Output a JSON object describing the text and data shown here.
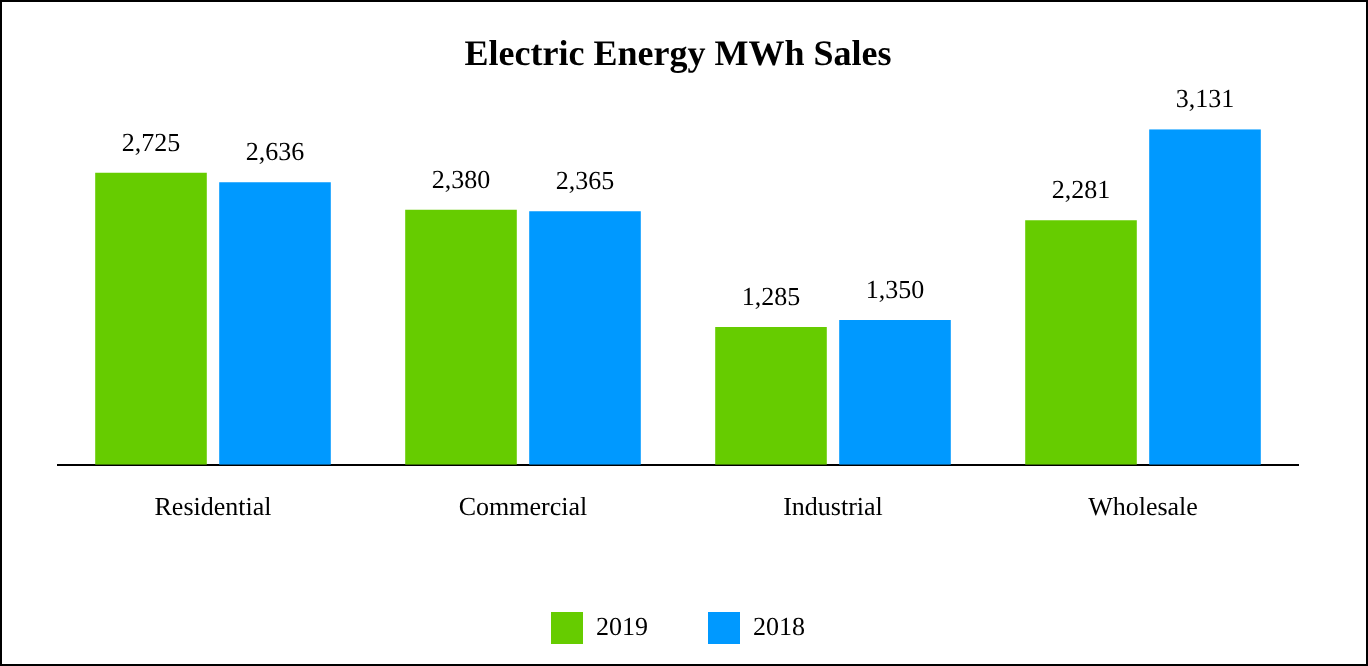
{
  "chart_data": {
    "type": "bar",
    "title": "Electric Energy MWh Sales",
    "categories": [
      "Residential",
      "Commercial",
      "Industrial",
      "Wholesale"
    ],
    "series": [
      {
        "name": "2019",
        "color": "#66cc00",
        "values": [
          2725,
          2380,
          1285,
          2281
        ],
        "value_labels": [
          "2,725",
          "2,380",
          "1,285",
          "2,281"
        ]
      },
      {
        "name": "2018",
        "color": "#0099ff",
        "values": [
          2636,
          2365,
          1350,
          3131
        ],
        "value_labels": [
          "2,636",
          "2,365",
          "1,350",
          "3,131"
        ]
      }
    ],
    "legend": "bottom",
    "grid": false
  }
}
